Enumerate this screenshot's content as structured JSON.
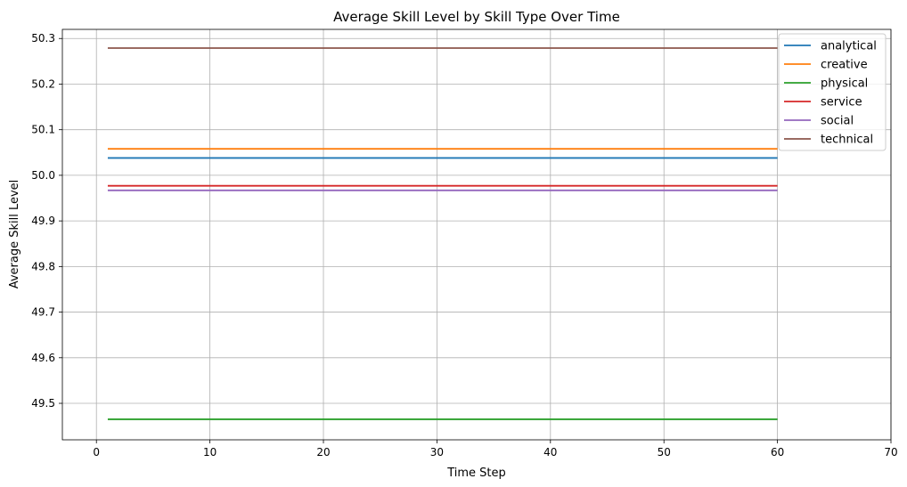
{
  "chart_data": {
    "type": "line",
    "title": "Average Skill Level by Skill Type Over Time",
    "xlabel": "Time Step",
    "ylabel": "Average Skill Level",
    "xlim": [
      -3,
      70
    ],
    "ylim": [
      49.42,
      50.32
    ],
    "x_ticks": [
      0,
      10,
      20,
      30,
      40,
      50,
      60,
      70
    ],
    "y_ticks": [
      49.5,
      49.6,
      49.7,
      49.8,
      49.9,
      50.0,
      50.1,
      50.2,
      50.3
    ],
    "x_tick_labels": [
      "0",
      "10",
      "20",
      "30",
      "40",
      "50",
      "60",
      "70"
    ],
    "y_tick_labels": [
      "49.5",
      "49.6",
      "49.7",
      "49.8",
      "49.9",
      "50.0",
      "50.1",
      "50.2",
      "50.3"
    ],
    "grid": true,
    "legend_position": "top-right",
    "x": [
      1,
      60
    ],
    "series": [
      {
        "name": "analytical",
        "color": "#1f77b4",
        "values": [
          50.038,
          50.038
        ]
      },
      {
        "name": "creative",
        "color": "#ff7f0e",
        "values": [
          50.058,
          50.058
        ]
      },
      {
        "name": "physical",
        "color": "#2ca02c",
        "values": [
          49.465,
          49.465
        ]
      },
      {
        "name": "service",
        "color": "#d62728",
        "values": [
          49.977,
          49.977
        ]
      },
      {
        "name": "social",
        "color": "#9467bd",
        "values": [
          49.967,
          49.967
        ]
      },
      {
        "name": "technical",
        "color": "#8c564b",
        "values": [
          50.279,
          50.279
        ]
      }
    ]
  }
}
